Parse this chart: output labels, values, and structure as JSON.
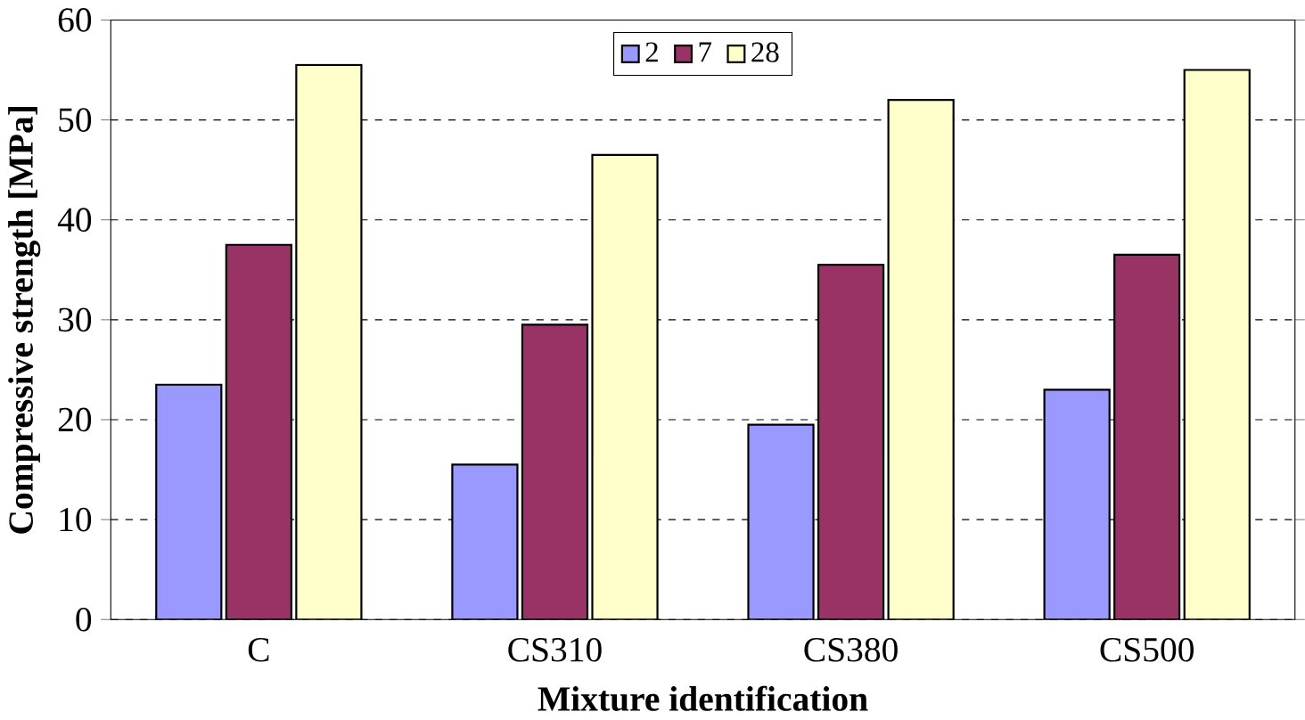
{
  "chart_data": {
    "type": "bar",
    "xlabel": "Mixture identification",
    "ylabel": "Compressive strength [MPa]",
    "categories": [
      "C",
      "CS310",
      "CS380",
      "CS500"
    ],
    "series": [
      {
        "name": "2",
        "color": "#9999ff",
        "values": [
          23.5,
          15.5,
          19.5,
          23
        ]
      },
      {
        "name": "7",
        "color": "#993366",
        "values": [
          37.5,
          29.5,
          35.5,
          36.5
        ]
      },
      {
        "name": "28",
        "color": "#ffffcc",
        "values": [
          55.5,
          46.5,
          52,
          55
        ]
      }
    ],
    "ylim": [
      0,
      60
    ],
    "yticks": [
      0,
      10,
      20,
      30,
      40,
      50,
      60
    ],
    "grid": "y",
    "legend": "top"
  }
}
